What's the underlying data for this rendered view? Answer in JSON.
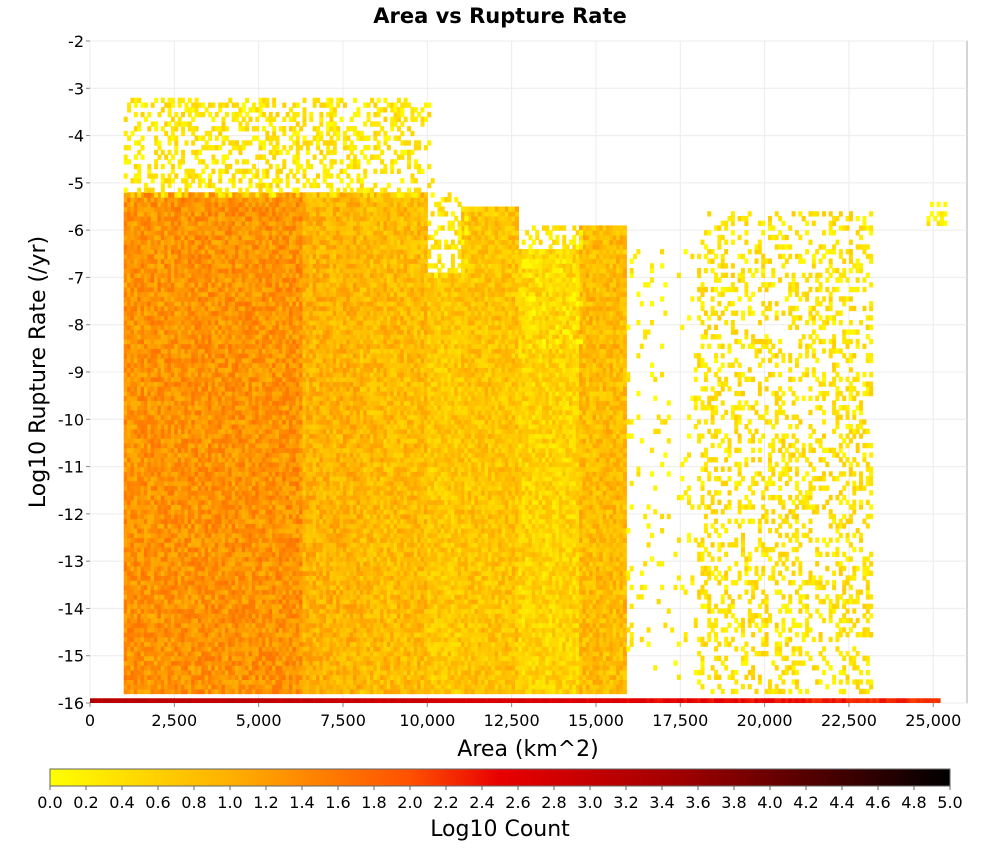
{
  "chart_data": {
    "type": "heatmap",
    "title": "Area vs Rupture Rate",
    "xlabel": "Area (km^2)",
    "ylabel": "Log10 Rupture Rate (/yr)",
    "xlim": [
      0,
      26000
    ],
    "ylim": [
      -16,
      -2
    ],
    "x_ticks": [
      0,
      2500,
      5000,
      7500,
      10000,
      12500,
      15000,
      17500,
      20000,
      22500,
      25000
    ],
    "x_tick_labels": [
      "0",
      "2,500",
      "5,000",
      "7,500",
      "10,000",
      "12,500",
      "15,000",
      "17,500",
      "20,000",
      "22,500",
      "25,000"
    ],
    "y_ticks": [
      -2,
      -3,
      -4,
      -5,
      -6,
      -7,
      -8,
      -9,
      -10,
      -11,
      -12,
      -13,
      -14,
      -15,
      -16
    ],
    "y_tick_labels": [
      "-2",
      "-3",
      "-4",
      "-5",
      "-6",
      "-7",
      "-8",
      "-9",
      "-10",
      "-11",
      "-12",
      "-13",
      "-14",
      "-15",
      "-16"
    ],
    "grid": true,
    "colorbar": {
      "label": "Log10 Count",
      "min": 0.0,
      "max": 5.0,
      "tick_labels": [
        "0.0",
        "0.2",
        "0.4",
        "0.6",
        "0.8",
        "1.0",
        "1.2",
        "1.4",
        "1.6",
        "1.8",
        "2.0",
        "2.2",
        "2.4",
        "2.6",
        "2.8",
        "3.0",
        "3.2",
        "3.4",
        "3.6",
        "3.8",
        "4.0",
        "4.2",
        "4.4",
        "4.6",
        "4.8",
        "5.0"
      ],
      "stops": [
        {
          "value": 0.0,
          "color": "#ffff00"
        },
        {
          "value": 1.0,
          "color": "#ffb000"
        },
        {
          "value": 2.0,
          "color": "#ff5000"
        },
        {
          "value": 2.5,
          "color": "#e80000"
        },
        {
          "value": 3.5,
          "color": "#a00000"
        },
        {
          "value": 5.0,
          "color": "#000000"
        }
      ]
    },
    "cell_size": {
      "x_area": 100,
      "y_log_rate": 0.1
    },
    "regions": [
      {
        "x": [
          1000,
          6300
        ],
        "y_top": -5.3,
        "y_bottom": -15.8,
        "level": 1.3
      },
      {
        "x": [
          6300,
          8000
        ],
        "y_top": -5.3,
        "y_bottom": -15.8,
        "level": 0.95
      },
      {
        "x": [
          8000,
          10000
        ],
        "y_top": -5.3,
        "y_bottom": -15.8,
        "level": 0.85
      },
      {
        "x": [
          10000,
          11000
        ],
        "y_top": -7.0,
        "y_bottom": -15.8,
        "level": 0.7
      },
      {
        "x": [
          11000,
          12700
        ],
        "y_top": -5.6,
        "y_bottom": -15.8,
        "level": 0.75
      },
      {
        "x": [
          12700,
          14500
        ],
        "y_top": -6.5,
        "y_bottom": -15.8,
        "level": 0.55
      },
      {
        "x": [
          14500,
          15900
        ],
        "y_top": -6.0,
        "y_bottom": -15.8,
        "level": 0.85
      }
    ],
    "sparse_clusters": [
      {
        "x": [
          1000,
          10200
        ],
        "y": [
          -5.3,
          -3.3
        ],
        "density": 0.35,
        "level": 0.3
      },
      {
        "x": [
          10000,
          11200
        ],
        "y": [
          -7.0,
          -5.3
        ],
        "density": 0.4,
        "level": 0.3
      },
      {
        "x": [
          12800,
          14600
        ],
        "y": [
          -8.5,
          -6.0
        ],
        "density": 0.4,
        "level": 0.3
      },
      {
        "x": [
          15900,
          18000
        ],
        "y": [
          -15.5,
          -6.5
        ],
        "density": 0.06,
        "level": 0.2
      },
      {
        "x": [
          18000,
          23200
        ],
        "y": [
          -15.8,
          -5.7
        ],
        "density": 0.28,
        "level": 0.35
      },
      {
        "x": [
          24800,
          25400
        ],
        "y": [
          -5.9,
          -5.5
        ],
        "density": 0.5,
        "level": 0.2
      }
    ],
    "bottom_row": {
      "y": -15.95,
      "x": [
        0,
        25200
      ],
      "level_start": 3.2,
      "level_end": 2.2
    }
  }
}
